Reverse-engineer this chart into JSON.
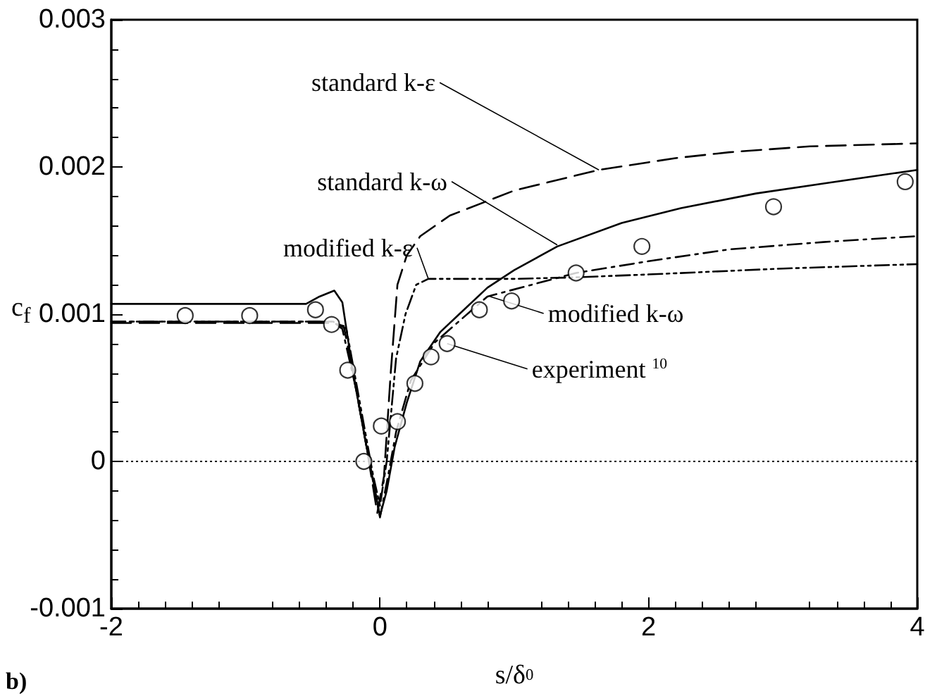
{
  "chart_data": {
    "type": "line",
    "xlabel": "s/δ$_{0}$",
    "ylabel": "c$_{f}$",
    "xlim": [
      -2,
      4
    ],
    "xticks": [
      -2,
      0,
      2,
      4
    ],
    "ylim": [
      -0.001,
      0.003
    ],
    "yticks": [
      -0.001,
      0,
      0.001,
      0.002,
      0.003
    ],
    "grid": false,
    "series": [
      {
        "color": "#000000",
        "line_style": "dashed",
        "marker": "none",
        "x": [
          -2,
          -0.35,
          -0.27,
          -0.2,
          -0.1,
          -0.02,
          0.03,
          0.08,
          0.13,
          0.2,
          0.3,
          0.52,
          1.0,
          1.63,
          2.2,
          2.6,
          3.2,
          4
        ],
        "values": [
          0.00094,
          0.00094,
          0.00092,
          0.0006,
          0.0001,
          -0.00035,
          -0.0001,
          0.0006,
          0.0012,
          0.0014,
          0.00153,
          0.00167,
          0.00184,
          0.00198,
          0.00206,
          0.0021,
          0.00214,
          0.00216
        ]
      },
      {
        "color": "#000000",
        "line_style": "solid",
        "marker": "none",
        "x": [
          -2,
          -0.55,
          -0.45,
          -0.34,
          -0.28,
          -0.2,
          -0.1,
          0,
          0.05,
          0.11,
          0.2,
          0.3,
          0.45,
          0.59,
          0.8,
          1.0,
          1.32,
          1.8,
          2.24,
          2.8,
          3.32,
          4
        ],
        "values": [
          0.00107,
          0.00107,
          0.00112,
          0.00116,
          0.00108,
          0.0006,
          0.0001,
          -0.00037,
          -0.0002,
          0.0001,
          0.0004,
          0.00068,
          0.00088,
          0.001,
          0.00118,
          0.0013,
          0.00146,
          0.00162,
          0.00172,
          0.00182,
          0.00189,
          0.00198
        ]
      },
      {
        "color": "#000000",
        "line_style": "dashdotdot",
        "marker": "none",
        "x": [
          -2,
          -0.35,
          -0.25,
          -0.15,
          -0.05,
          0,
          0.05,
          0.12,
          0.19,
          0.27,
          0.36,
          0.6,
          1.0,
          1.45,
          2,
          3,
          4
        ],
        "values": [
          0.00095,
          0.00095,
          0.0009,
          0.0004,
          -0.0001,
          -0.0003,
          0.0,
          0.0007,
          0.001,
          0.0012,
          0.00124,
          0.00124,
          0.00124,
          0.00125,
          0.00127,
          0.00131,
          0.00134
        ]
      },
      {
        "color": "#000000",
        "line_style": "dashdot",
        "marker": "none",
        "x": [
          -2,
          -0.35,
          -0.28,
          -0.18,
          -0.08,
          0,
          0.06,
          0.12,
          0.23,
          0.41,
          0.8,
          1.46,
          2,
          2.6,
          3.3,
          4
        ],
        "values": [
          0.00095,
          0.00095,
          0.0009,
          0.0005,
          0.0,
          -0.00038,
          -0.0001,
          0.0002,
          0.00055,
          0.00081,
          0.00112,
          0.00128,
          0.00136,
          0.00144,
          0.00149,
          0.00153
        ]
      },
      {
        "type": "scatter",
        "color": "#000000",
        "marker": "circle",
        "x": [
          -1.45,
          -0.97,
          -0.48,
          -0.36,
          -0.24,
          -0.12,
          0.01,
          0.13,
          0.26,
          0.38,
          0.5,
          0.74,
          0.98,
          1.46,
          1.95,
          2.93,
          3.91
        ],
        "values": [
          0.00099,
          0.00099,
          0.00103,
          0.00093,
          0.00062,
          0.0,
          0.00024,
          0.00027,
          0.00053,
          0.00071,
          0.0008,
          0.00103,
          0.00109,
          0.00128,
          0.00146,
          0.00173,
          0.0019
        ]
      }
    ],
    "ref_lines": [
      {
        "axis": "y",
        "value": 0,
        "color": "#000000",
        "line_style": "dotted"
      }
    ],
    "annotations": [
      {
        "text": "standard k-ε",
        "x": 1.63,
        "y": 0.00198
      },
      {
        "text": "standard k-ω",
        "x": 1.32,
        "y": 0.00147
      },
      {
        "text": "modified k-ε",
        "x": 0.36,
        "y": 0.00124
      },
      {
        "text": "modified k-ω",
        "x": 0.82,
        "y": 0.00112
      },
      {
        "text": "experiment $^{10}$",
        "x": 0.5,
        "y": 0.0008
      },
      "b)"
    ]
  }
}
